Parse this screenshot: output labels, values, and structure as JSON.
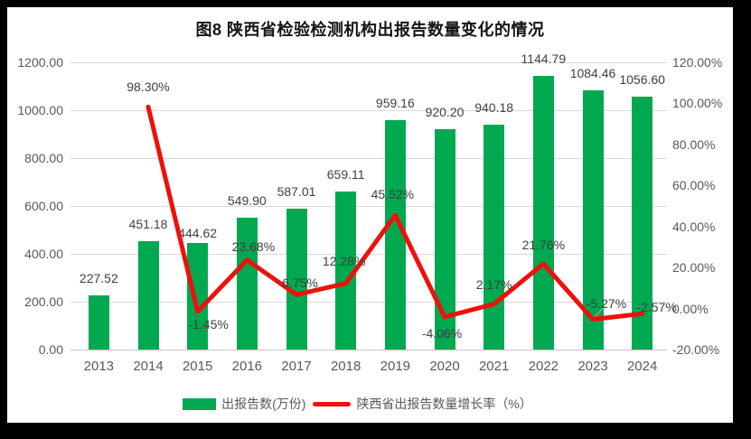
{
  "frame": {
    "border_color": "#000000",
    "background": "#ffffff"
  },
  "title": "图8  陕西省检验检测机构出报告数量变化的情况",
  "colors": {
    "bar": "#00a850",
    "line": "#ef100c",
    "grid": "#d9d9d9",
    "axis_text": "#595959",
    "label_text": "#3f3f3f"
  },
  "chart_data": {
    "type": "bar",
    "subtype": "combo-bar-line",
    "title": "图8  陕西省检验检测机构出报告数量变化的情况",
    "categories": [
      "2013",
      "2014",
      "2015",
      "2016",
      "2017",
      "2018",
      "2019",
      "2020",
      "2021",
      "2022",
      "2023",
      "2024"
    ],
    "series": [
      {
        "name": "出报告数(万份)",
        "type": "bar",
        "axis": "left",
        "color": "#00a850",
        "values": [
          227.52,
          451.18,
          444.62,
          549.9,
          587.01,
          659.11,
          959.16,
          920.2,
          940.18,
          1144.79,
          1084.46,
          1056.6
        ],
        "labels": [
          "227.52",
          "451.18",
          "444.62",
          "549.90",
          "587.01",
          "659.11",
          "959.16",
          "920.20",
          "940.18",
          "1144.79",
          "1084.46",
          "1056.60"
        ],
        "label_dy": [
          0,
          0,
          8,
          0,
          0,
          0,
          0,
          0,
          0,
          0,
          0,
          0
        ]
      },
      {
        "name": "陕西省出报告数量增长率（%）",
        "type": "line",
        "axis": "right",
        "color": "#ef100c",
        "values": [
          null,
          98.3,
          -1.45,
          23.68,
          6.75,
          12.28,
          45.52,
          -4.06,
          2.17,
          21.76,
          -5.27,
          -2.57
        ],
        "labels": [
          "",
          "98.30%",
          "-1.45%",
          "23.68%",
          "6.75%",
          "12.28%",
          "45.52%",
          "-4.06%",
          "2.17%",
          "21.76%",
          "-5.27%",
          "-2.57%"
        ],
        "label_dx": [
          0,
          0,
          12,
          7,
          4,
          -2,
          -3,
          -3,
          0,
          0,
          15,
          16
        ],
        "label_dy": [
          0,
          -30,
          6,
          -23,
          -21,
          -33,
          -31,
          10,
          -30,
          -29,
          -26,
          -15
        ],
        "leader_index": 10
      }
    ],
    "left_axis": {
      "min": 0,
      "max": 1200,
      "ticks": [
        "1200.00",
        "1000.00",
        "800.00",
        "600.00",
        "400.00",
        "200.00",
        "0.00"
      ]
    },
    "right_axis": {
      "min": -20,
      "max": 120,
      "ticks": [
        "120.00%",
        "100.00%",
        "80.00%",
        "60.00%",
        "40.00%",
        "20.00%",
        "0.00%",
        "-20.00%"
      ]
    },
    "grid": true,
    "legend_position": "bottom"
  },
  "legend": {
    "bar_label": "出报告数(万份)",
    "line_label": "陕西省出报告数量增长率（%）"
  }
}
